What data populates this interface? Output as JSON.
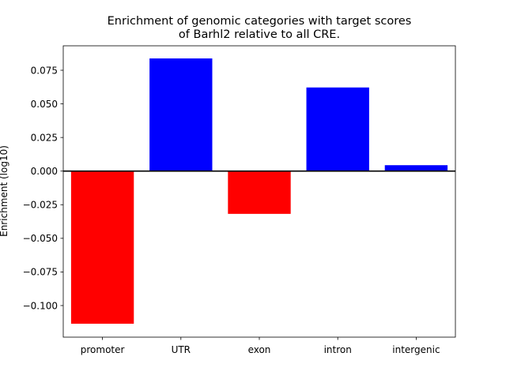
{
  "chart_data": {
    "type": "bar",
    "title_lines": [
      "Enrichment of genomic categories with target scores",
      "of Barhl2 relative to all CRE."
    ],
    "xlabel": "",
    "ylabel": "Enrichment (log10)",
    "categories": [
      "promoter",
      "UTR",
      "exon",
      "intron",
      "intergenic"
    ],
    "values": [
      -0.1135,
      0.0838,
      -0.0318,
      0.0622,
      0.0044
    ],
    "ylim": [
      -0.1235,
      0.0932
    ],
    "yticks": [
      -0.1,
      -0.075,
      -0.05,
      -0.025,
      0.0,
      0.025,
      0.05,
      0.075
    ],
    "ytick_labels": [
      "−0.100",
      "−0.075",
      "−0.050",
      "−0.025",
      "0.000",
      "0.025",
      "0.050",
      "0.075"
    ],
    "positive_color": "#0000ff",
    "negative_color": "#ff0000",
    "zero_line": true,
    "grid": false,
    "legend": "none"
  }
}
